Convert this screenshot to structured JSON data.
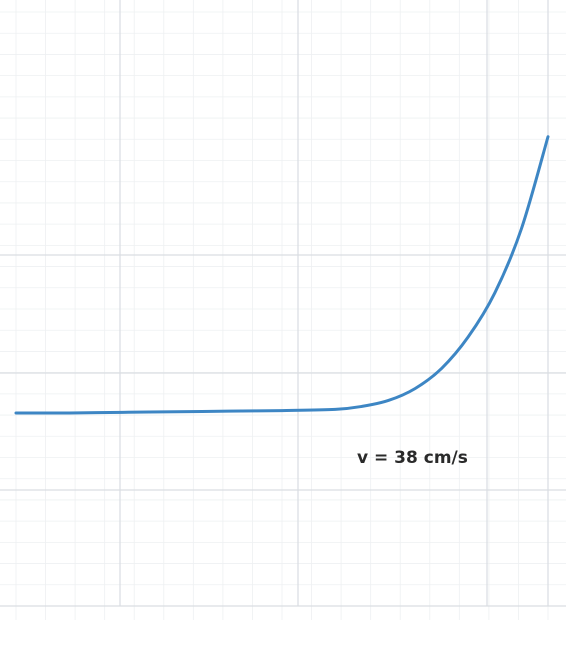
{
  "chart_data": {
    "type": "line",
    "title": "",
    "xlabel": "",
    "ylabel": "",
    "xlim": [
      0,
      10
    ],
    "ylim": [
      -1,
      9
    ],
    "grid": true,
    "annotation": "v = 38 cm/s",
    "series": [
      {
        "color": "#3d86c4",
        "x": [
          0,
          1,
          2,
          3,
          4,
          5,
          6,
          6.5,
          7,
          7.5,
          8,
          8.5,
          9,
          9.5,
          10
        ],
        "y": [
          2.25,
          2.25,
          2.26,
          2.27,
          2.28,
          2.29,
          2.31,
          2.36,
          2.46,
          2.66,
          3.0,
          3.53,
          4.27,
          5.35,
          6.9
        ]
      }
    ]
  }
}
